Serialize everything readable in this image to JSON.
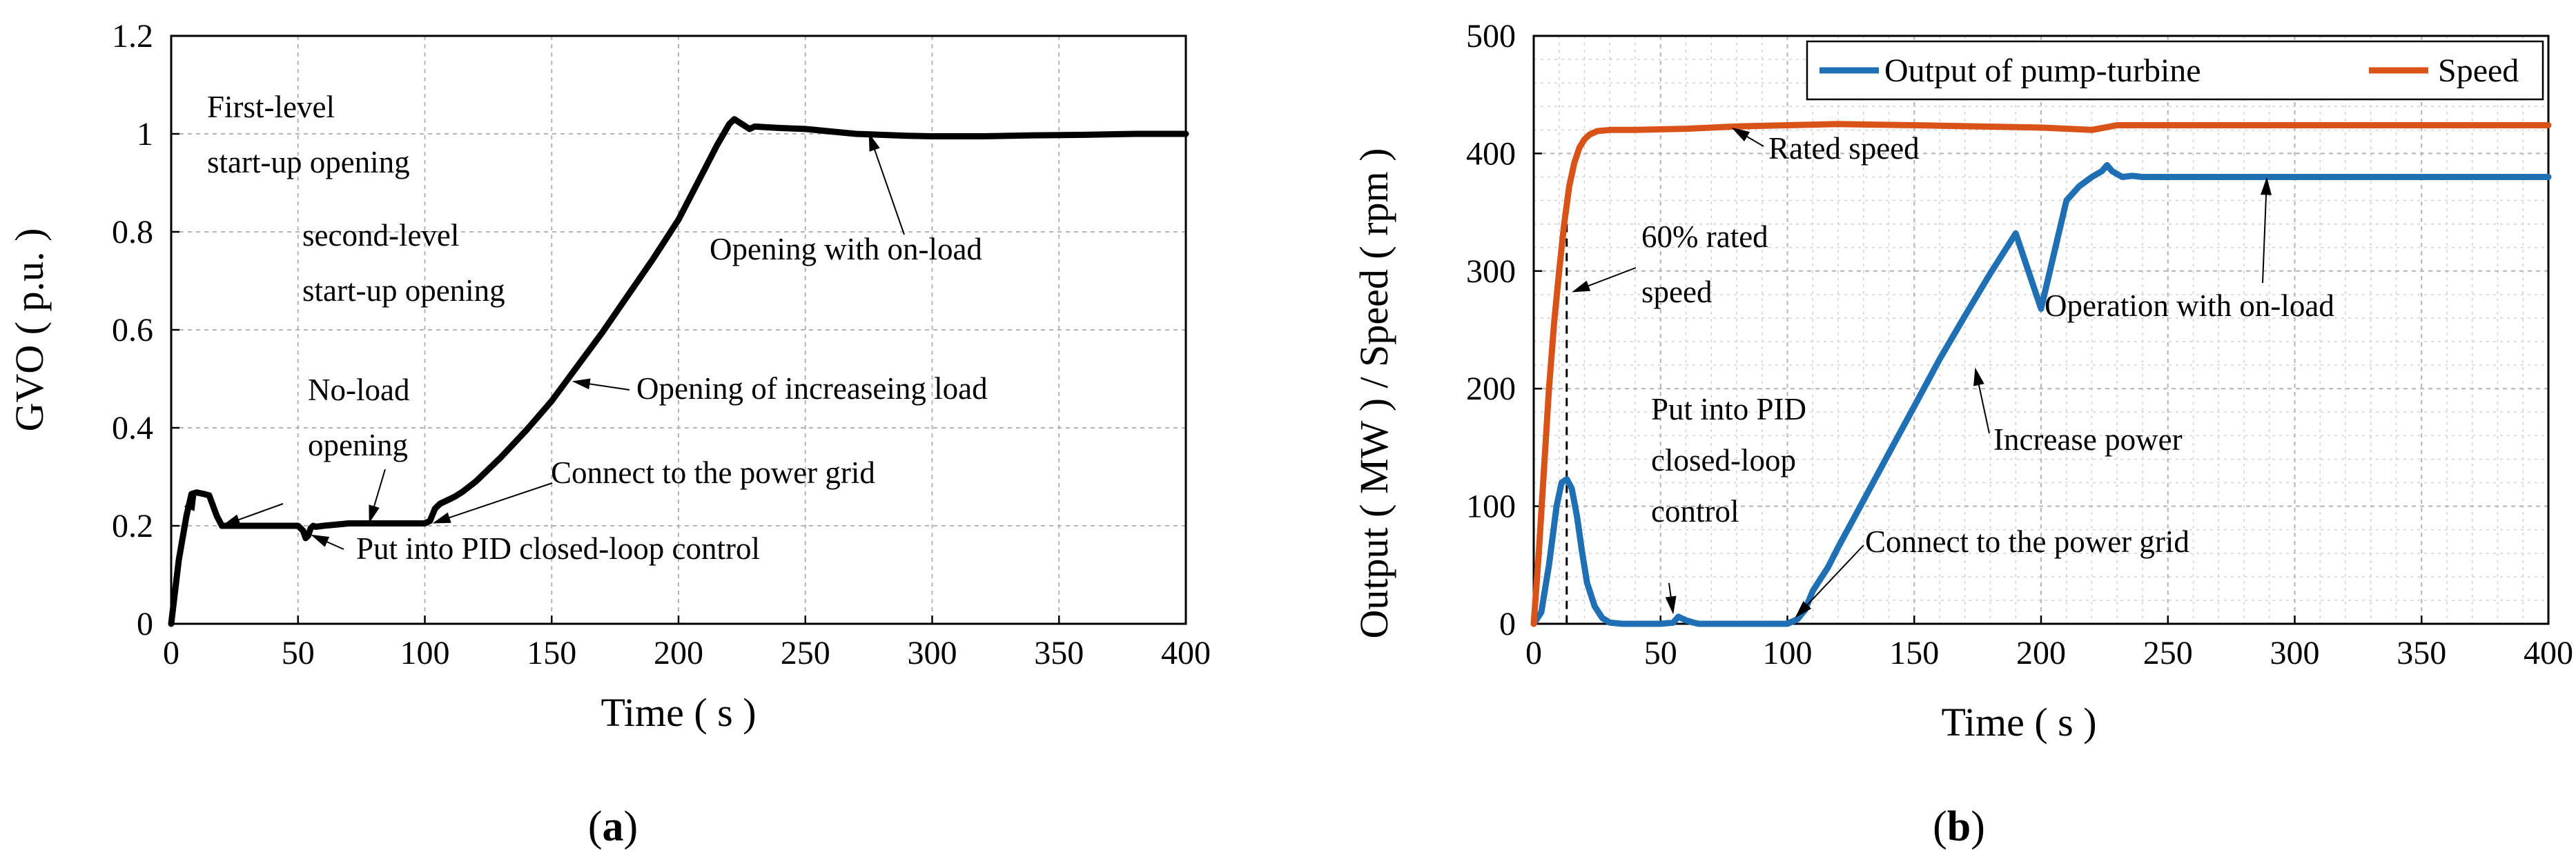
{
  "chart_data": [
    {
      "type": "line",
      "panel_label": "(a)",
      "caption_open": "(",
      "caption_letter": "a",
      "caption_close": ")",
      "title": "",
      "xlabel": "Time ( s )",
      "ylabel": "GVO ( p.u. )",
      "xlim": [
        0,
        400
      ],
      "ylim": [
        0,
        1.2
      ],
      "xticks": [
        0,
        50,
        100,
        150,
        200,
        250,
        300,
        350,
        400
      ],
      "yticks": [
        0,
        0.2,
        0.4,
        0.6,
        0.8,
        1,
        1.2
      ],
      "xtick_labels": [
        "0",
        "50",
        "100",
        "150",
        "200",
        "250",
        "300",
        "350",
        "400"
      ],
      "ytick_labels": [
        "0",
        "0.2",
        "0.4",
        "0.6",
        "0.8",
        "1",
        "1.2"
      ],
      "grid": true,
      "series": [
        {
          "name": "GVO",
          "color": "#000000",
          "x": [
            0,
            3,
            6,
            8,
            10,
            13,
            15,
            18,
            20,
            30,
            40,
            50,
            52,
            53,
            54,
            55,
            56,
            57,
            60,
            70,
            80,
            90,
            100,
            102,
            104,
            106,
            108,
            110,
            112,
            115,
            120,
            130,
            140,
            150,
            160,
            170,
            180,
            190,
            200,
            210,
            215,
            220,
            222,
            225,
            228,
            230,
            240,
            250,
            260,
            270,
            280,
            290,
            300,
            320,
            340,
            360,
            380,
            400
          ],
          "y": [
            0,
            0.13,
            0.22,
            0.265,
            0.268,
            0.265,
            0.262,
            0.22,
            0.2,
            0.2,
            0.2,
            0.2,
            0.19,
            0.175,
            0.18,
            0.195,
            0.2,
            0.198,
            0.2,
            0.205,
            0.205,
            0.205,
            0.205,
            0.21,
            0.235,
            0.245,
            0.25,
            0.255,
            0.26,
            0.27,
            0.29,
            0.34,
            0.395,
            0.455,
            0.525,
            0.595,
            0.67,
            0.745,
            0.825,
            0.925,
            0.975,
            1.02,
            1.03,
            1.02,
            1.01,
            1.015,
            1.012,
            1.01,
            1.005,
            1.0,
            0.998,
            0.996,
            0.995,
            0.995,
            0.997,
            0.998,
            1.0,
            1.0
          ]
        }
      ],
      "annotations": [
        {
          "id": "a1",
          "lines": [
            "First-level",
            "start-up opening"
          ],
          "point": [
            10,
            0.268
          ]
        },
        {
          "id": "a2",
          "lines": [
            "second-level",
            "start-up opening"
          ],
          "point": [
            20,
            0.2
          ]
        },
        {
          "id": "a3",
          "lines": [
            "No-load",
            "opening"
          ],
          "point": [
            78,
            0.205
          ]
        },
        {
          "id": "a4",
          "lines": [
            "Put into PID closed-loop control"
          ],
          "point": [
            55,
            0.182
          ]
        },
        {
          "id": "a5",
          "lines": [
            "Connect to the power grid"
          ],
          "point": [
            103,
            0.205
          ]
        },
        {
          "id": "a6",
          "lines": [
            "Opening of increaseing load"
          ],
          "point": [
            158,
            0.495
          ]
        },
        {
          "id": "a7",
          "lines": [
            "Opening with on-load"
          ],
          "point": [
            275,
            1.002
          ]
        }
      ]
    },
    {
      "type": "line",
      "panel_label": "(b)",
      "caption_open": "(",
      "caption_letter": "b",
      "caption_close": ")",
      "title": "",
      "xlabel": "Time ( s )",
      "ylabel": "Output ( MW ) / Speed ( rpm )",
      "xlim": [
        0,
        400
      ],
      "ylim": [
        0,
        500
      ],
      "xticks": [
        0,
        50,
        100,
        150,
        200,
        250,
        300,
        350,
        400
      ],
      "yticks": [
        0,
        100,
        200,
        300,
        400,
        500
      ],
      "xtick_labels": [
        "0",
        "50",
        "100",
        "150",
        "200",
        "250",
        "300",
        "350",
        "400"
      ],
      "ytick_labels": [
        "0",
        "100",
        "200",
        "300",
        "400",
        "500"
      ],
      "grid": true,
      "legend_position": "top",
      "series": [
        {
          "name": "Output of pump-turbine",
          "color": "#1f6fb5",
          "x": [
            0,
            3,
            6,
            9,
            11,
            13,
            15,
            17,
            19,
            21,
            24,
            27,
            30,
            35,
            40,
            50,
            55,
            57,
            60,
            63,
            65,
            70,
            80,
            90,
            100,
            104,
            107,
            110,
            113,
            116,
            120,
            130,
            140,
            150,
            160,
            170,
            180,
            190,
            200,
            210,
            215,
            220,
            224,
            226,
            228,
            232,
            236,
            240,
            250,
            270,
            300,
            350,
            400
          ],
          "y": [
            0,
            10,
            50,
            100,
            120,
            123,
            115,
            92,
            62,
            35,
            15,
            5,
            1,
            0,
            0,
            0,
            1,
            6,
            3,
            1,
            0,
            0,
            0,
            0,
            0,
            4,
            12,
            28,
            38,
            48,
            65,
            105,
            145,
            185,
            225,
            262,
            298,
            332,
            268,
            360,
            372,
            380,
            385,
            390,
            385,
            380,
            381,
            380,
            380,
            380,
            380,
            380,
            380
          ]
        },
        {
          "name": "Speed",
          "color": "#d95319",
          "x": [
            0,
            2,
            4,
            6,
            8,
            10,
            12,
            14,
            16,
            18,
            20,
            22,
            25,
            30,
            40,
            60,
            80,
            100,
            120,
            150,
            200,
            220,
            230,
            260,
            300,
            350,
            400
          ],
          "y": [
            0,
            60,
            130,
            200,
            255,
            300,
            340,
            372,
            392,
            405,
            412,
            416,
            419,
            420,
            420,
            421,
            423,
            424,
            425,
            424,
            422,
            420,
            424,
            424,
            424,
            424,
            424
          ]
        }
      ],
      "annotations": [
        {
          "id": "b1",
          "lines": [
            "Rated speed"
          ],
          "point": [
            78,
            422
          ]
        },
        {
          "id": "b2",
          "lines": [
            "60% rated",
            "speed"
          ],
          "point": [
            15,
            282
          ]
        },
        {
          "id": "b3",
          "lines": [
            "Put into PID",
            "closed-loop",
            "control"
          ],
          "point": [
            55,
            8
          ]
        },
        {
          "id": "b4",
          "lines": [
            "Connect to the power grid"
          ],
          "point": [
            103,
            5
          ]
        },
        {
          "id": "b5",
          "lines": [
            "Increase power"
          ],
          "point": [
            174,
            218
          ]
        },
        {
          "id": "b6",
          "lines": [
            "Operation with on-load"
          ],
          "point": [
            289,
            380
          ]
        }
      ],
      "reference_line": {
        "x": 13,
        "style": "dashed"
      }
    }
  ]
}
